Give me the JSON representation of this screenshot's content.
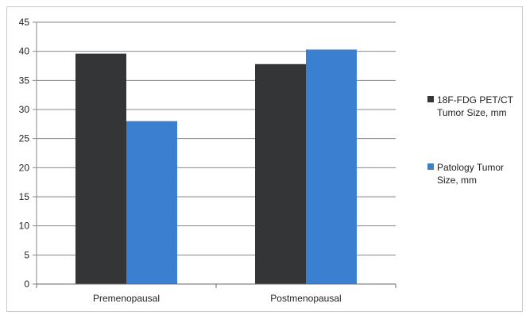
{
  "chart_data": {
    "type": "bar",
    "categories": [
      "Premenopausal",
      "Postmenopausal"
    ],
    "series": [
      {
        "name": "18F-FDG PET/CT Tumor Size, mm",
        "legend_lines": [
          "18F-FDG PET/CT",
          "Tumor Size, mm"
        ],
        "color": "#333537",
        "values": [
          39.6,
          37.8
        ]
      },
      {
        "name": "Patology Tumor Size, mm",
        "legend_lines": [
          "Patology Tumor",
          "Size, mm"
        ],
        "color": "#3b7fd0",
        "values": [
          28.0,
          40.3
        ]
      }
    ],
    "title": "",
    "xlabel": "",
    "ylabel": "",
    "ylim": [
      0,
      45
    ],
    "yticks": [
      "0",
      "5",
      "10",
      "15",
      "20",
      "25",
      "30",
      "35",
      "40",
      "45"
    ],
    "grid": true,
    "legend_position": "right"
  }
}
